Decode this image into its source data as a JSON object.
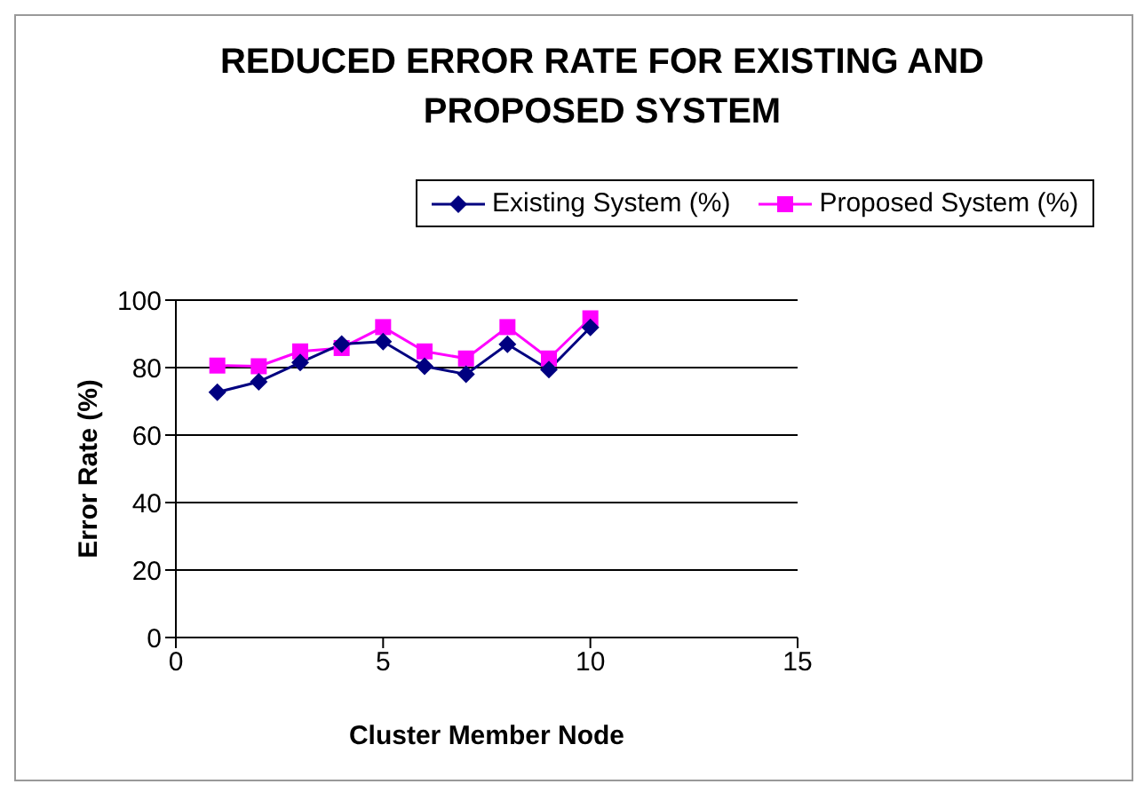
{
  "chart_data": {
    "type": "line",
    "title": "REDUCED ERROR RATE FOR EXISTING AND PROPOSED SYSTEM",
    "xlabel": "Cluster Member Node",
    "ylabel": "Error Rate (%)",
    "x": [
      1,
      2,
      3,
      4,
      5,
      6,
      7,
      8,
      9,
      10
    ],
    "series": [
      {
        "name": "Existing System (%)",
        "color": "#000080",
        "marker": "diamond",
        "values": [
          72.7,
          75.8,
          81.5,
          87,
          87.7,
          80.4,
          78,
          86.9,
          79.4,
          91.9
        ]
      },
      {
        "name": "Proposed System (%)",
        "color": "#ff00ff",
        "marker": "square",
        "values": [
          80.6,
          80.4,
          84.8,
          85.8,
          92,
          84.8,
          82.7,
          92,
          82.7,
          94.6
        ]
      }
    ],
    "xlim": [
      0,
      15
    ],
    "xticks": [
      0,
      5,
      10,
      15
    ],
    "ylim": [
      0,
      100
    ],
    "yticks": [
      0,
      20,
      40,
      60,
      80,
      100
    ],
    "grid": "y",
    "legend": "top right"
  }
}
